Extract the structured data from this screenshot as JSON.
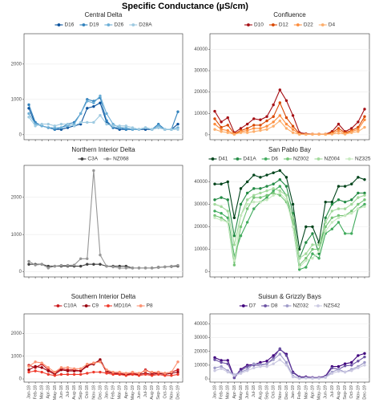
{
  "title": "Specific Conductance (µS/cm)",
  "chart_data": [
    {
      "type": "line",
      "title": "Central Delta",
      "grid": true,
      "ylim": [
        -140,
        2860
      ],
      "yticks": [
        0,
        1000,
        2000
      ],
      "categories": [
        null,
        null,
        null,
        null,
        null,
        null,
        null,
        null,
        null,
        null,
        null,
        null,
        null,
        null,
        null,
        null,
        null,
        null,
        null,
        null,
        null,
        null,
        null,
        null
      ],
      "series": [
        {
          "name": "D16",
          "color": "#08519c",
          "values": [
            750,
            300,
            250,
            200,
            150,
            150,
            200,
            250,
            300,
            750,
            800,
            900,
            350,
            200,
            150,
            150,
            150,
            150,
            150,
            150,
            200,
            150,
            150,
            300
          ]
        },
        {
          "name": "D19",
          "color": "#3182bd",
          "values": [
            850,
            350,
            250,
            200,
            150,
            200,
            300,
            350,
            600,
            1000,
            950,
            1050,
            400,
            200,
            200,
            150,
            150,
            150,
            200,
            150,
            300,
            150,
            150,
            650
          ]
        },
        {
          "name": "D26",
          "color": "#6baed6",
          "values": [
            600,
            300,
            250,
            200,
            200,
            200,
            250,
            300,
            600,
            950,
            900,
            1100,
            600,
            300,
            200,
            200,
            150,
            150,
            200,
            150,
            250,
            150,
            150,
            200
          ]
        },
        {
          "name": "D28A",
          "color": "#9ecae1",
          "values": [
            500,
            250,
            300,
            300,
            250,
            300,
            300,
            250,
            350,
            350,
            350,
            550,
            300,
            250,
            250,
            250,
            200,
            150,
            200,
            150,
            200,
            150,
            150,
            150
          ]
        }
      ]
    },
    {
      "type": "line",
      "title": "Confluence",
      "grid": true,
      "ylim": [
        -2300,
        47300
      ],
      "yticks": [
        0,
        10000,
        20000,
        30000,
        40000
      ],
      "categories": [
        null,
        null,
        null,
        null,
        null,
        null,
        null,
        null,
        null,
        null,
        null,
        null,
        null,
        null,
        null,
        null,
        null,
        null,
        null,
        null,
        null,
        null,
        null,
        null
      ],
      "series": [
        {
          "name": "D10",
          "color": "#a50f15",
          "values": [
            11000,
            6000,
            8000,
            1000,
            3000,
            5000,
            7500,
            7000,
            8500,
            14000,
            21000,
            16000,
            9000,
            1000,
            500,
            300,
            300,
            300,
            1500,
            5000,
            1500,
            3000,
            6000,
            12000
          ]
        },
        {
          "name": "D12",
          "color": "#d94801",
          "values": [
            7500,
            3500,
            4500,
            500,
            2000,
            3000,
            4500,
            4500,
            6500,
            8500,
            15000,
            8000,
            4000,
            500,
            300,
            300,
            300,
            300,
            1000,
            3000,
            1000,
            2000,
            3500,
            8500
          ]
        },
        {
          "name": "D22",
          "color": "#fd8d3c",
          "values": [
            5000,
            2500,
            2000,
            300,
            1500,
            2000,
            3000,
            3000,
            4000,
            6000,
            9000,
            5000,
            2500,
            300,
            200,
            200,
            200,
            200,
            500,
            2000,
            500,
            1500,
            2500,
            7000
          ]
        },
        {
          "name": "D4",
          "color": "#fdae6b",
          "values": [
            2500,
            1500,
            1000,
            200,
            1000,
            1000,
            1500,
            2000,
            2500,
            4000,
            6500,
            3000,
            1000,
            200,
            200,
            200,
            200,
            200,
            300,
            800,
            300,
            1000,
            1500,
            3500
          ]
        }
      ]
    },
    {
      "type": "line",
      "title": "Northern Interior Delta",
      "grid": true,
      "ylim": [
        -140,
        2860
      ],
      "yticks": [
        0,
        1000,
        2000
      ],
      "categories": [
        null,
        null,
        null,
        null,
        null,
        null,
        null,
        null,
        null,
        null,
        null,
        null,
        null,
        null,
        null,
        null,
        null,
        null,
        null,
        null,
        null,
        null,
        null,
        null
      ],
      "series": [
        {
          "name": "C3A",
          "color": "#404040",
          "values": [
            200,
            200,
            200,
            150,
            150,
            150,
            150,
            150,
            150,
            200,
            200,
            200,
            150,
            150,
            150,
            150,
            100,
            100,
            100,
            100,
            120,
            130,
            140,
            150
          ]
        },
        {
          "name": "NZ068",
          "color": "#969696",
          "values": [
            280,
            180,
            200,
            100,
            150,
            170,
            170,
            180,
            350,
            350,
            2720,
            450,
            150,
            130,
            100,
            100,
            100,
            100,
            100,
            100,
            110,
            130,
            150,
            170
          ]
        }
      ]
    },
    {
      "type": "line",
      "title": "San Pablo Bay",
      "grid": true,
      "ylim": [
        -2300,
        47300
      ],
      "yticks": [
        0,
        10000,
        20000,
        30000,
        40000
      ],
      "categories": [
        null,
        null,
        null,
        null,
        null,
        null,
        null,
        null,
        null,
        null,
        null,
        null,
        null,
        null,
        null,
        null,
        null,
        null,
        null,
        null,
        null,
        null,
        null,
        null
      ],
      "series": [
        {
          "name": "D41",
          "color": "#00441b",
          "values": [
            39000,
            39000,
            40000,
            24000,
            37000,
            40000,
            43000,
            42000,
            43000,
            44000,
            45000,
            42000,
            30000,
            10000,
            20000,
            20000,
            13000,
            31000,
            31000,
            38000,
            38000,
            39000,
            42000,
            41000
          ]
        },
        {
          "name": "D41A",
          "color": "#238b45",
          "values": [
            32000,
            33000,
            32000,
            16000,
            30000,
            35000,
            37000,
            37000,
            38000,
            39000,
            41000,
            38000,
            26000,
            6000,
            13000,
            17000,
            8000,
            24000,
            30000,
            32000,
            31000,
            32000,
            35000,
            35000
          ]
        },
        {
          "name": "D6",
          "color": "#41ab5d",
          "values": [
            27000,
            26000,
            24000,
            7000,
            16000,
            22000,
            28000,
            31000,
            33000,
            36000,
            38000,
            34000,
            20000,
            1000,
            2000,
            8000,
            6000,
            17000,
            19000,
            22000,
            17000,
            17000,
            28000,
            30000
          ]
        },
        {
          "name": "NZ002",
          "color": "#74c476",
          "values": [
            25000,
            24000,
            22000,
            3000,
            20000,
            28000,
            33000,
            33000,
            34000,
            35000,
            34000,
            31000,
            22000,
            3000,
            6000,
            10000,
            10000,
            20000,
            24000,
            25000,
            25000,
            27000,
            30000,
            32000
          ]
        },
        {
          "name": "NZ004",
          "color": "#a1d99b",
          "values": [
            30000,
            29000,
            27000,
            12000,
            25000,
            32000,
            34000,
            35000,
            36000,
            37000,
            36000,
            34000,
            24000,
            6000,
            8000,
            12000,
            12000,
            22000,
            27000,
            28000,
            28000,
            30000,
            33000,
            34000
          ]
        },
        {
          "name": "NZ325",
          "color": "#c7e9c0",
          "values": [
            24000,
            23000,
            22000,
            5000,
            25000,
            30000,
            31000,
            31000,
            32000,
            34000,
            35000,
            32000,
            20000,
            2000,
            5000,
            6000,
            9000,
            18000,
            22000,
            24000,
            25000,
            26000,
            28000,
            29000
          ]
        }
      ]
    },
    {
      "type": "line",
      "title": "Southern Interior Delta",
      "grid": true,
      "ylim": [
        -140,
        2860
      ],
      "yticks": [
        0,
        1000,
        2000
      ],
      "categories": [
        "Jan-18",
        "Feb-18",
        "Mar-18",
        "Apr-18",
        "May-18",
        "Jun-18",
        "Jul-18",
        "Aug-18",
        "Sep-18",
        "Oct-18",
        "Nov-18",
        "Dec-18",
        "Jan-19",
        "Feb-19",
        "Mar-19",
        "Apr-19",
        "May-19",
        "Jun-19",
        "Jul-19",
        "Aug-19",
        "Sep-19",
        "Oct-19",
        "Nov-19",
        "Dec-19"
      ],
      "series": [
        {
          "name": "C10A",
          "color": "#cb181d",
          "values": [
            600,
            500,
            650,
            400,
            250,
            450,
            400,
            400,
            350,
            550,
            700,
            800,
            300,
            250,
            250,
            200,
            250,
            200,
            400,
            250,
            300,
            250,
            300,
            400
          ]
        },
        {
          "name": "C9",
          "color": "#99000d",
          "values": [
            400,
            550,
            500,
            350,
            200,
            400,
            350,
            350,
            350,
            600,
            650,
            850,
            350,
            250,
            200,
            200,
            200,
            200,
            250,
            200,
            250,
            200,
            250,
            300
          ]
        },
        {
          "name": "MD10A",
          "color": "#ef3b2c",
          "values": [
            300,
            350,
            300,
            200,
            150,
            200,
            200,
            200,
            200,
            250,
            300,
            300,
            250,
            200,
            200,
            150,
            200,
            150,
            200,
            150,
            200,
            150,
            150,
            200
          ]
        },
        {
          "name": "P8",
          "color": "#fc9272",
          "values": [
            550,
            750,
            700,
            500,
            300,
            500,
            500,
            450,
            450,
            650,
            700,
            750,
            400,
            300,
            300,
            250,
            300,
            250,
            350,
            300,
            300,
            250,
            300,
            750
          ]
        }
      ]
    },
    {
      "type": "line",
      "title": "Suisun & Grizzly Bays",
      "grid": true,
      "ylim": [
        -2300,
        47300
      ],
      "yticks": [
        0,
        10000,
        20000,
        30000,
        40000
      ],
      "categories": [
        "Jan-18",
        "Feb-18",
        "Mar-18",
        "Apr-18",
        "May-18",
        "Jun-18",
        "Jul-18",
        "Aug-18",
        "Sep-18",
        "Oct-18",
        "Nov-18",
        "Dec-18",
        "Jan-19",
        "Feb-19",
        "Mar-19",
        "Apr-19",
        "May-19",
        "Jun-19",
        "Jul-19",
        "Aug-19",
        "Sep-19",
        "Oct-19",
        "Nov-19",
        "Dec-19"
      ],
      "series": [
        {
          "name": "D7",
          "color": "#3f007d",
          "values": [
            15500,
            13500,
            13500,
            1000,
            7000,
            10000,
            10500,
            12000,
            13000,
            17000,
            21500,
            18000,
            5000,
            1500,
            1500,
            1000,
            1000,
            2000,
            9000,
            9000,
            11000,
            12000,
            17000,
            18500
          ]
        },
        {
          "name": "D8",
          "color": "#6a51a3",
          "values": [
            14000,
            12000,
            11000,
            800,
            6000,
            9000,
            10000,
            10000,
            11000,
            15000,
            22000,
            17000,
            4500,
            1200,
            1000,
            800,
            800,
            1500,
            8000,
            7000,
            9500,
            10000,
            13000,
            16000
          ]
        },
        {
          "name": "NZ032",
          "color": "#9e9ac8",
          "values": [
            8000,
            9000,
            6000,
            3000,
            5000,
            7000,
            11000,
            10500,
            11000,
            14000,
            18000,
            12000,
            2000,
            500,
            800,
            500,
            600,
            1500,
            5000,
            7000,
            5000,
            7000,
            9000,
            12000
          ]
        },
        {
          "name": "NZS42",
          "color": "#cbc9e2",
          "values": [
            6000,
            7500,
            5000,
            2500,
            4000,
            6000,
            8000,
            9000,
            9000,
            11000,
            14000,
            10000,
            1500,
            400,
            600,
            400,
            500,
            1000,
            4000,
            5500,
            5000,
            6000,
            8000,
            10000
          ]
        }
      ]
    }
  ]
}
